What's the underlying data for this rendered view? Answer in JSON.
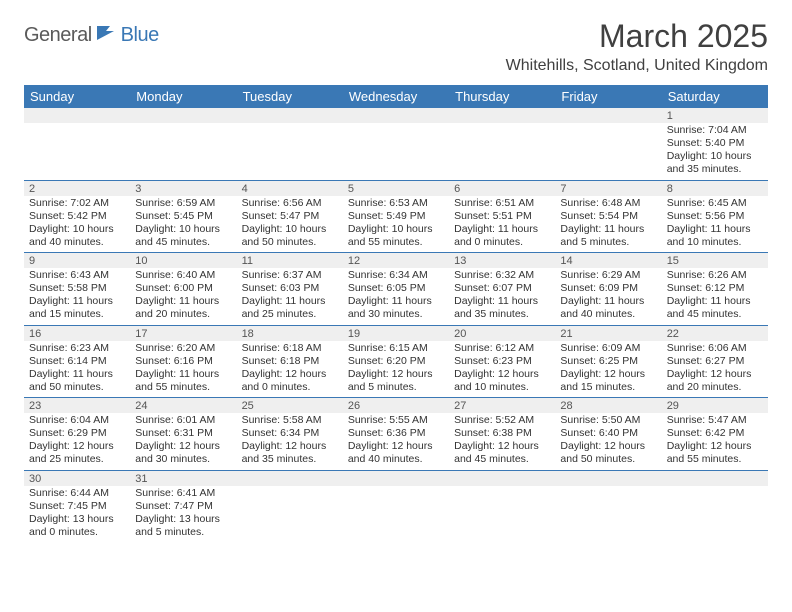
{
  "logo": {
    "text1": "General",
    "text2": "Blue"
  },
  "title": "March 2025",
  "location": "Whitehills, Scotland, United Kingdom",
  "colors": {
    "header_bg": "#3a78b5",
    "header_fg": "#ffffff",
    "daynum_bg": "#efefef",
    "rule": "#3a78b5",
    "text": "#333333",
    "title_text": "#404040"
  },
  "day_headers": [
    "Sunday",
    "Monday",
    "Tuesday",
    "Wednesday",
    "Thursday",
    "Friday",
    "Saturday"
  ],
  "weeks": [
    [
      null,
      null,
      null,
      null,
      null,
      null,
      {
        "n": "1",
        "sr": "Sunrise: 7:04 AM",
        "ss": "Sunset: 5:40 PM",
        "dl": "Daylight: 10 hours and 35 minutes."
      }
    ],
    [
      {
        "n": "2",
        "sr": "Sunrise: 7:02 AM",
        "ss": "Sunset: 5:42 PM",
        "dl": "Daylight: 10 hours and 40 minutes."
      },
      {
        "n": "3",
        "sr": "Sunrise: 6:59 AM",
        "ss": "Sunset: 5:45 PM",
        "dl": "Daylight: 10 hours and 45 minutes."
      },
      {
        "n": "4",
        "sr": "Sunrise: 6:56 AM",
        "ss": "Sunset: 5:47 PM",
        "dl": "Daylight: 10 hours and 50 minutes."
      },
      {
        "n": "5",
        "sr": "Sunrise: 6:53 AM",
        "ss": "Sunset: 5:49 PM",
        "dl": "Daylight: 10 hours and 55 minutes."
      },
      {
        "n": "6",
        "sr": "Sunrise: 6:51 AM",
        "ss": "Sunset: 5:51 PM",
        "dl": "Daylight: 11 hours and 0 minutes."
      },
      {
        "n": "7",
        "sr": "Sunrise: 6:48 AM",
        "ss": "Sunset: 5:54 PM",
        "dl": "Daylight: 11 hours and 5 minutes."
      },
      {
        "n": "8",
        "sr": "Sunrise: 6:45 AM",
        "ss": "Sunset: 5:56 PM",
        "dl": "Daylight: 11 hours and 10 minutes."
      }
    ],
    [
      {
        "n": "9",
        "sr": "Sunrise: 6:43 AM",
        "ss": "Sunset: 5:58 PM",
        "dl": "Daylight: 11 hours and 15 minutes."
      },
      {
        "n": "10",
        "sr": "Sunrise: 6:40 AM",
        "ss": "Sunset: 6:00 PM",
        "dl": "Daylight: 11 hours and 20 minutes."
      },
      {
        "n": "11",
        "sr": "Sunrise: 6:37 AM",
        "ss": "Sunset: 6:03 PM",
        "dl": "Daylight: 11 hours and 25 minutes."
      },
      {
        "n": "12",
        "sr": "Sunrise: 6:34 AM",
        "ss": "Sunset: 6:05 PM",
        "dl": "Daylight: 11 hours and 30 minutes."
      },
      {
        "n": "13",
        "sr": "Sunrise: 6:32 AM",
        "ss": "Sunset: 6:07 PM",
        "dl": "Daylight: 11 hours and 35 minutes."
      },
      {
        "n": "14",
        "sr": "Sunrise: 6:29 AM",
        "ss": "Sunset: 6:09 PM",
        "dl": "Daylight: 11 hours and 40 minutes."
      },
      {
        "n": "15",
        "sr": "Sunrise: 6:26 AM",
        "ss": "Sunset: 6:12 PM",
        "dl": "Daylight: 11 hours and 45 minutes."
      }
    ],
    [
      {
        "n": "16",
        "sr": "Sunrise: 6:23 AM",
        "ss": "Sunset: 6:14 PM",
        "dl": "Daylight: 11 hours and 50 minutes."
      },
      {
        "n": "17",
        "sr": "Sunrise: 6:20 AM",
        "ss": "Sunset: 6:16 PM",
        "dl": "Daylight: 11 hours and 55 minutes."
      },
      {
        "n": "18",
        "sr": "Sunrise: 6:18 AM",
        "ss": "Sunset: 6:18 PM",
        "dl": "Daylight: 12 hours and 0 minutes."
      },
      {
        "n": "19",
        "sr": "Sunrise: 6:15 AM",
        "ss": "Sunset: 6:20 PM",
        "dl": "Daylight: 12 hours and 5 minutes."
      },
      {
        "n": "20",
        "sr": "Sunrise: 6:12 AM",
        "ss": "Sunset: 6:23 PM",
        "dl": "Daylight: 12 hours and 10 minutes."
      },
      {
        "n": "21",
        "sr": "Sunrise: 6:09 AM",
        "ss": "Sunset: 6:25 PM",
        "dl": "Daylight: 12 hours and 15 minutes."
      },
      {
        "n": "22",
        "sr": "Sunrise: 6:06 AM",
        "ss": "Sunset: 6:27 PM",
        "dl": "Daylight: 12 hours and 20 minutes."
      }
    ],
    [
      {
        "n": "23",
        "sr": "Sunrise: 6:04 AM",
        "ss": "Sunset: 6:29 PM",
        "dl": "Daylight: 12 hours and 25 minutes."
      },
      {
        "n": "24",
        "sr": "Sunrise: 6:01 AM",
        "ss": "Sunset: 6:31 PM",
        "dl": "Daylight: 12 hours and 30 minutes."
      },
      {
        "n": "25",
        "sr": "Sunrise: 5:58 AM",
        "ss": "Sunset: 6:34 PM",
        "dl": "Daylight: 12 hours and 35 minutes."
      },
      {
        "n": "26",
        "sr": "Sunrise: 5:55 AM",
        "ss": "Sunset: 6:36 PM",
        "dl": "Daylight: 12 hours and 40 minutes."
      },
      {
        "n": "27",
        "sr": "Sunrise: 5:52 AM",
        "ss": "Sunset: 6:38 PM",
        "dl": "Daylight: 12 hours and 45 minutes."
      },
      {
        "n": "28",
        "sr": "Sunrise: 5:50 AM",
        "ss": "Sunset: 6:40 PM",
        "dl": "Daylight: 12 hours and 50 minutes."
      },
      {
        "n": "29",
        "sr": "Sunrise: 5:47 AM",
        "ss": "Sunset: 6:42 PM",
        "dl": "Daylight: 12 hours and 55 minutes."
      }
    ],
    [
      {
        "n": "30",
        "sr": "Sunrise: 6:44 AM",
        "ss": "Sunset: 7:45 PM",
        "dl": "Daylight: 13 hours and 0 minutes."
      },
      {
        "n": "31",
        "sr": "Sunrise: 6:41 AM",
        "ss": "Sunset: 7:47 PM",
        "dl": "Daylight: 13 hours and 5 minutes."
      },
      null,
      null,
      null,
      null,
      null
    ]
  ]
}
